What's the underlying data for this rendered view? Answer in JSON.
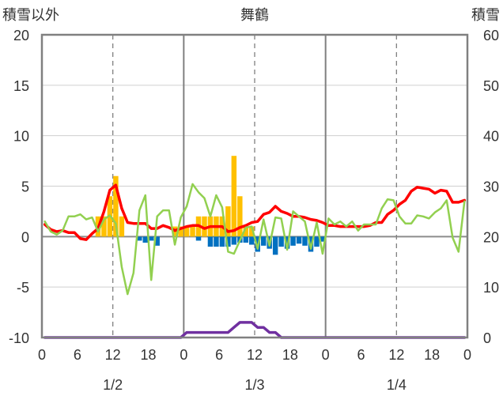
{
  "header": {
    "left_label": "積雪以外",
    "title": "舞鶴",
    "right_label": "積雪"
  },
  "chart_data": {
    "type": "combo",
    "title": "舞鶴",
    "y_left": {
      "label": "積雪以外",
      "min": -10,
      "max": 20,
      "ticks": [
        "20",
        "15",
        "10",
        "5",
        "0",
        "-5",
        "-10"
      ]
    },
    "y_right": {
      "label": "積雪",
      "min": 0,
      "max": 60,
      "ticks": [
        "60",
        "50",
        "40",
        "30",
        "20",
        "10",
        "0"
      ]
    },
    "x_hour_ticks": [
      "0",
      "6",
      "12",
      "18",
      "0",
      "6",
      "12",
      "18",
      "0",
      "6",
      "12",
      "18",
      "0"
    ],
    "date_labels": [
      "1/2",
      "1/3",
      "1/4"
    ],
    "grid": true,
    "colors": {
      "precip_positive": "#ffc000",
      "precip_negative": "#0070c0",
      "red_series": "#ff0000",
      "green_series": "#92d050",
      "snow_depth": "#7030a0",
      "axis": "#808080"
    },
    "series": [
      {
        "type": "bar",
        "color": "#ffc000",
        "hours": [
          9,
          10,
          11,
          12,
          13,
          22,
          23,
          24,
          25,
          26,
          27,
          28,
          29,
          30,
          31,
          32,
          33,
          34,
          35
        ],
        "values": [
          2,
          2,
          4,
          6,
          2,
          1,
          1,
          1,
          1,
          2,
          2,
          2,
          2,
          2,
          3,
          8,
          4,
          1,
          1
        ]
      },
      {
        "type": "bar",
        "color": "#0070c0",
        "hours": [
          16,
          17,
          18,
          19,
          26,
          28,
          29,
          30,
          31,
          32,
          33,
          34,
          35,
          36,
          37,
          38,
          39,
          40,
          41,
          42,
          43,
          44,
          45,
          46,
          47
        ],
        "values": [
          -0.4,
          -0.6,
          -0.4,
          -0.9,
          -0.4,
          -1,
          -1,
          -1,
          -1,
          -0.8,
          -0.6,
          -0.6,
          -0.8,
          -1.5,
          -0.9,
          -1.2,
          -1.8,
          -1,
          -1.2,
          -0.9,
          -0.7,
          -0.9,
          -1.5,
          -1,
          -0.5
        ]
      },
      {
        "type": "line",
        "color": "#ff0000",
        "hours": [
          0,
          1,
          2,
          3,
          4,
          5,
          6,
          7,
          8,
          9,
          10,
          11,
          12,
          13,
          14,
          15,
          16,
          17,
          18,
          19,
          20,
          21,
          22,
          23,
          24,
          25,
          26,
          27,
          28,
          29,
          30,
          31,
          32,
          33,
          34,
          35,
          36,
          37,
          38,
          39,
          40,
          41,
          42,
          43,
          44,
          45,
          46,
          47,
          48,
          49,
          50,
          51,
          52,
          53,
          54,
          55,
          56,
          57,
          58,
          59,
          60,
          61,
          62,
          63,
          64,
          65,
          66,
          67,
          68,
          69,
          70,
          71
        ],
        "values": [
          1.2,
          0.7,
          0.5,
          0.6,
          0.4,
          0.4,
          -0.2,
          -0.3,
          0.3,
          0.8,
          2.5,
          4.6,
          5.1,
          2.8,
          1.4,
          1.3,
          1.3,
          1.3,
          0.8,
          0.8,
          1.1,
          0.9,
          0.6,
          0.8,
          1.0,
          1.1,
          1.1,
          0.8,
          1.0,
          1.0,
          1.0,
          0.5,
          0.6,
          0.9,
          1.1,
          1.4,
          1.5,
          2.2,
          2.4,
          3.0,
          2.5,
          2.3,
          2.0,
          2.0,
          1.9,
          1.7,
          1.6,
          1.4,
          1.1,
          1.1,
          1.0,
          1.0,
          1.0,
          1.0,
          1.0,
          1.1,
          1.4,
          1.4,
          2.2,
          2.6,
          3.2,
          3.6,
          4.5,
          4.9,
          4.8,
          4.7,
          4.3,
          4.6,
          4.5,
          3.4,
          3.4,
          3.6
        ]
      },
      {
        "type": "line",
        "color": "#92d050",
        "hours": [
          0,
          1,
          2,
          3,
          4,
          5,
          6,
          7,
          8,
          9,
          10,
          11,
          12,
          13,
          14,
          15,
          16,
          17,
          18,
          19,
          20,
          21,
          22,
          23,
          24,
          25,
          26,
          27,
          28,
          29,
          30,
          31,
          32,
          33,
          34,
          35,
          36,
          37,
          38,
          39,
          40,
          41,
          42,
          43,
          44,
          45,
          46,
          47,
          48,
          49,
          50,
          51,
          52,
          53,
          54,
          55,
          56,
          57,
          58,
          59,
          60,
          61,
          62,
          63,
          64,
          65,
          66,
          67,
          68,
          69,
          70,
          71
        ],
        "values": [
          1.5,
          0.5,
          0.2,
          0.6,
          2.0,
          2.0,
          2.2,
          1.7,
          1.9,
          0.5,
          1.7,
          2.1,
          1.3,
          -3.0,
          -5.7,
          -3.6,
          2.6,
          4.1,
          -4.3,
          2.0,
          2.6,
          2.6,
          -0.8,
          1.9,
          3.0,
          5.2,
          4.4,
          3.8,
          2.0,
          4.1,
          2.9,
          -1.5,
          -1.7,
          -0.4,
          0.9,
          1.0,
          -1.2,
          1.7,
          -0.9,
          1.9,
          1.8,
          -1.3,
          2.5,
          2.0,
          1.5,
          -1.2,
          1.4,
          -1.7,
          1.8,
          1.2,
          1.5,
          1.0,
          1.5,
          0.6,
          1.2,
          1.2,
          1.2,
          2.8,
          3.7,
          3.6,
          2.0,
          1.3,
          1.3,
          2.1,
          2.0,
          1.8,
          2.4,
          2.8,
          3.6,
          -0.1,
          -1.5,
          3.5
        ]
      },
      {
        "type": "line",
        "color": "#7030a0",
        "axis": "right",
        "hours": [
          0,
          1,
          2,
          3,
          4,
          5,
          6,
          7,
          8,
          9,
          10,
          11,
          12,
          13,
          14,
          15,
          16,
          17,
          18,
          19,
          20,
          21,
          22,
          23,
          24,
          25,
          26,
          27,
          28,
          29,
          30,
          31,
          32,
          33,
          34,
          35,
          36,
          37,
          38,
          39,
          40,
          41,
          42,
          43,
          44,
          45,
          46,
          47,
          48,
          49,
          50,
          51,
          52,
          53,
          54,
          55,
          56,
          57,
          58,
          59,
          60,
          61,
          62,
          63,
          64,
          65,
          66,
          67,
          68,
          69,
          70,
          71
        ],
        "values": [
          0,
          0,
          0,
          0,
          0,
          0,
          0,
          0,
          0,
          0,
          0,
          0,
          0,
          0,
          0,
          0,
          0,
          0,
          0,
          0,
          0,
          0,
          0,
          0,
          1,
          1,
          1,
          1,
          1,
          1,
          1,
          1,
          2,
          3,
          3,
          3,
          2,
          2,
          1,
          1,
          0,
          0,
          0,
          0,
          0,
          0,
          0,
          0,
          0,
          0,
          0,
          0,
          0,
          0,
          0,
          0,
          0,
          0,
          0,
          0,
          0,
          0,
          0,
          0,
          0,
          0,
          0,
          0,
          0,
          0,
          0,
          0
        ]
      }
    ]
  }
}
